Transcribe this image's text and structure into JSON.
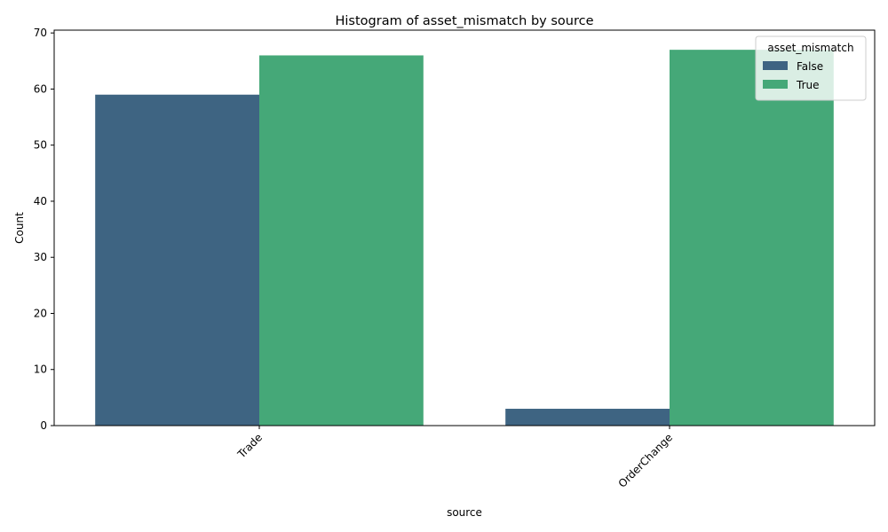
{
  "chart_data": {
    "type": "bar",
    "title": "Histogram of asset_mismatch by source",
    "xlabel": "source",
    "ylabel": "Count",
    "categories": [
      "Trade",
      "OrderChange"
    ],
    "series": [
      {
        "name": "False",
        "color": "#3e6482",
        "values": [
          59,
          3
        ]
      },
      {
        "name": "True",
        "color": "#45a878",
        "values": [
          66,
          67
        ]
      }
    ],
    "ylim": [
      0,
      70.5
    ],
    "yticks": [
      0,
      10,
      20,
      30,
      40,
      50,
      60,
      70
    ],
    "legend": {
      "title": "asset_mismatch",
      "placement": "top-right"
    },
    "grid": false,
    "xtick_rotation": 45
  }
}
